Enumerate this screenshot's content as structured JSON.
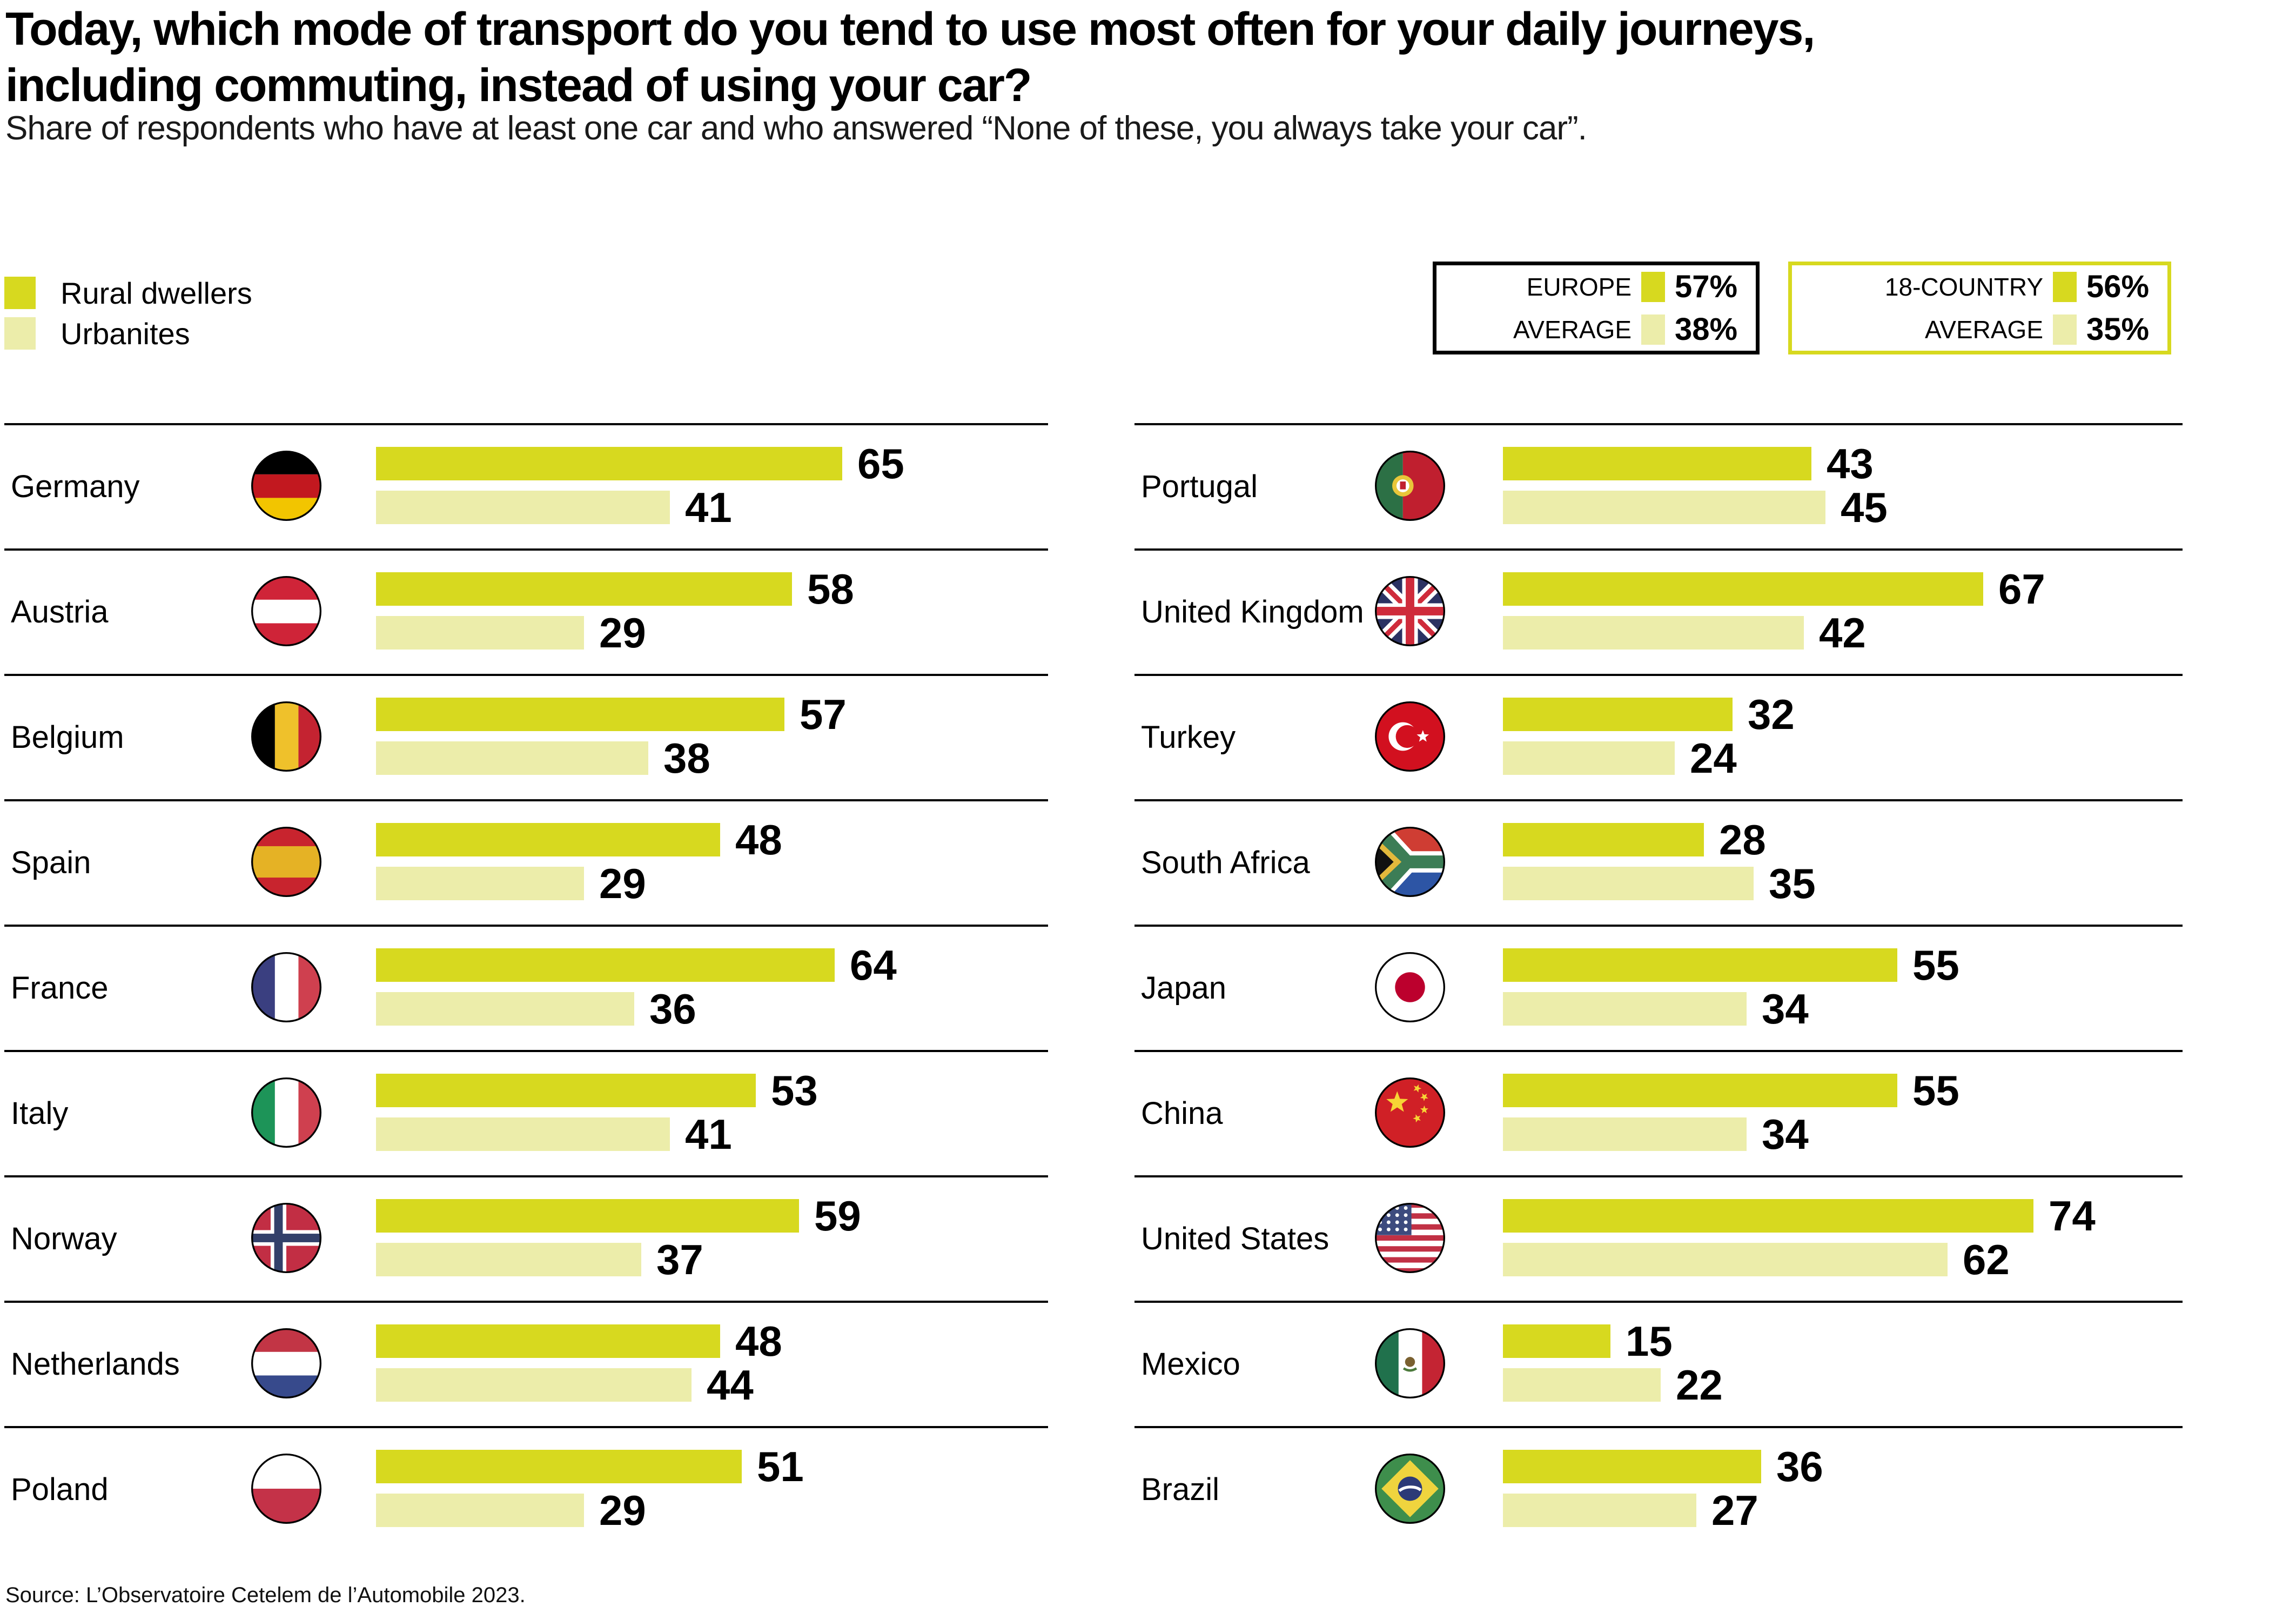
{
  "header": {
    "title_lines": [
      "Today, which mode of transport do you tend to use most often for your daily journeys,",
      "including commuting, instead of using your car?"
    ],
    "subtitle": "Share of respondents who have at least one car and who answered “None of these, you always take your car”."
  },
  "colors": {
    "rural": "#d7d91f",
    "urban": "#ecedaa"
  },
  "legend": {
    "items": [
      {
        "label": "Rural dwellers",
        "color": "#d7d91f"
      },
      {
        "label": "Urbanites",
        "color": "#ecedaa"
      }
    ]
  },
  "averages_boxes": [
    {
      "line1": "EUROPE",
      "line2": "AVERAGE",
      "rural_value": "57%",
      "urban_value": "38%",
      "border": "#000000"
    },
    {
      "line1": "18-COUNTRY",
      "line2": "AVERAGE",
      "rural_value": "56%",
      "urban_value": "35%",
      "border": "#d7d91f"
    }
  ],
  "chart_data": {
    "type": "bar",
    "orientation": "horizontal",
    "unit": "percent",
    "series_names": [
      "Rural dwellers",
      "Urbanites"
    ],
    "xlim": [
      0,
      100
    ],
    "averages": [
      {
        "label": "EUROPE AVERAGE",
        "rural": 57,
        "urban": 38
      },
      {
        "label": "18-COUNTRY AVERAGE",
        "rural": 56,
        "urban": 35
      }
    ],
    "columns": {
      "left": [
        {
          "country": "Germany",
          "flag": "germany",
          "rural": 65,
          "urban": 41
        },
        {
          "country": "Austria",
          "flag": "austria",
          "rural": 58,
          "urban": 29
        },
        {
          "country": "Belgium",
          "flag": "belgium",
          "rural": 57,
          "urban": 38
        },
        {
          "country": "Spain",
          "flag": "spain",
          "rural": 48,
          "urban": 29
        },
        {
          "country": "France",
          "flag": "france",
          "rural": 64,
          "urban": 36
        },
        {
          "country": "Italy",
          "flag": "italy",
          "rural": 53,
          "urban": 41
        },
        {
          "country": "Norway",
          "flag": "norway",
          "rural": 59,
          "urban": 37
        },
        {
          "country": "Netherlands",
          "flag": "netherlands",
          "rural": 48,
          "urban": 44
        },
        {
          "country": "Poland",
          "flag": "poland",
          "rural": 51,
          "urban": 29
        }
      ],
      "right": [
        {
          "country": "Portugal",
          "flag": "portugal",
          "rural": 43,
          "urban": 45
        },
        {
          "country": "United Kingdom",
          "flag": "uk",
          "rural": 67,
          "urban": 42
        },
        {
          "country": "Turkey",
          "flag": "turkey",
          "rural": 32,
          "urban": 24
        },
        {
          "country": "South Africa",
          "flag": "southafrica",
          "rural": 28,
          "urban": 35
        },
        {
          "country": "Japan",
          "flag": "japan",
          "rural": 55,
          "urban": 34
        },
        {
          "country": "China",
          "flag": "china",
          "rural": 55,
          "urban": 34
        },
        {
          "country": "United States",
          "flag": "us",
          "rural": 74,
          "urban": 62
        },
        {
          "country": "Mexico",
          "flag": "mexico",
          "rural": 15,
          "urban": 22
        },
        {
          "country": "Brazil",
          "flag": "brazil",
          "rural": 36,
          "urban": 27
        }
      ]
    }
  },
  "source": "Source: L’Observatoire Cetelem de l’Automobile 2023."
}
